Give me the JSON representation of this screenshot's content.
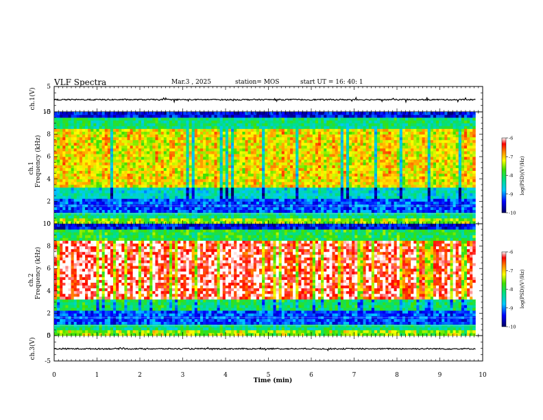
{
  "header": {
    "title": "VLF Spectra",
    "date": "Mar.3  , 2025",
    "station": "station= MOS",
    "start": "start  UT  =   16: 40: 1"
  },
  "chart_data": [
    {
      "type": "line",
      "panel": "ch1-waveform",
      "ylabel": "ch.1(V)",
      "ylim": [
        -5,
        5
      ],
      "yticks": [
        "5",
        "-5"
      ],
      "xlim": [
        0,
        10
      ],
      "series": [
        {
          "values_description_free": true,
          "level": -0.2
        }
      ],
      "grid": false
    },
    {
      "type": "heatmap",
      "panel": "ch1-spectrogram",
      "ylabel": "ch.1\nFrequency (kHz)",
      "ylabel_lines": [
        "ch.1",
        "Frequency (kHz)"
      ],
      "ylim": [
        0,
        10
      ],
      "yticks": [
        "0",
        "2",
        "4",
        "6",
        "8",
        "10"
      ],
      "xlim": [
        0,
        9.83
      ],
      "colorbar": {
        "label": "log(PSD)(V²/Hz)",
        "range": [
          -10,
          -6
        ],
        "ticks": [
          "-6",
          "-7",
          "-8",
          "-9",
          "-10"
        ]
      }
    },
    {
      "type": "heatmap",
      "panel": "ch2-spectrogram",
      "ylabel": "ch.2\nFrequency (kHz)",
      "ylabel_lines": [
        "ch.2",
        "Frequency (kHz)"
      ],
      "ylim": [
        0,
        10
      ],
      "yticks": [
        "0",
        "2",
        "4",
        "6",
        "8",
        "10"
      ],
      "xlim": [
        0,
        9.83
      ],
      "colorbar": {
        "label": "log(PSD)(V²/Hz)",
        "range": [
          -10,
          -6
        ],
        "ticks": [
          "-6",
          "-7",
          "-8",
          "-9",
          "-10"
        ]
      }
    },
    {
      "type": "line",
      "panel": "ch3-waveform",
      "ylabel": "ch.3(V)",
      "ylim": [
        -5,
        5
      ],
      "yticks": [
        "5",
        "-5"
      ],
      "xlim": [
        0,
        10
      ],
      "series": [
        {
          "level": -0.2
        }
      ],
      "grid": false
    }
  ],
  "x_axis": {
    "label": "Time  (min)",
    "range": [
      0,
      10
    ],
    "ticks": [
      "0",
      "1",
      "2",
      "3",
      "4",
      "5",
      "6",
      "7",
      "8",
      "9",
      "10"
    ]
  },
  "colorbar_label": "log(PSD)(V²/Hz)",
  "colors": {
    "spectro_low": "#00007a",
    "spectro_mid": "#00d000",
    "spectro_high": "#ff0000",
    "spectro_peak": "#ffffff"
  }
}
